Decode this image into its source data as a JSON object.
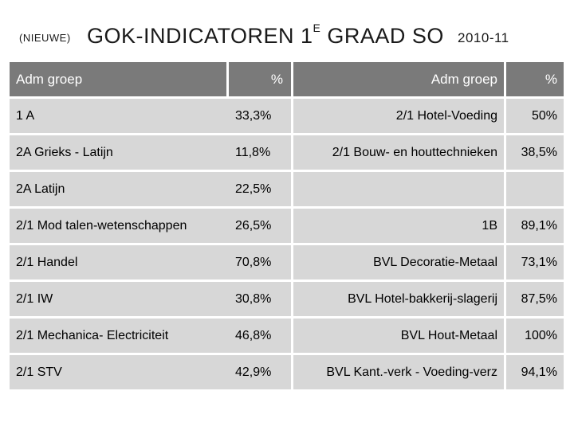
{
  "title": {
    "prefix": "(NIEUWE)",
    "main": "GOK-INDICATOREN 1",
    "superscript": "E",
    "main_suffix": " GRAAD SO",
    "year": "2010-11"
  },
  "table": {
    "headers": [
      "Adm groep",
      "%",
      "Adm groep",
      "%"
    ],
    "rows": [
      [
        "1 A",
        "33,3%",
        "2/1 Hotel-Voeding",
        "50%"
      ],
      [
        "2A Grieks - Latijn",
        "11,8%",
        "2/1 Bouw- en houttechnieken",
        "38,5%"
      ],
      [
        "2A Latijn",
        "22,5%",
        "",
        ""
      ],
      [
        "2/1 Mod talen-wetenschappen",
        "26,5%",
        "1B",
        "89,1%"
      ],
      [
        "2/1 Handel",
        "70,8%",
        "BVL Decoratie-Metaal",
        "73,1%"
      ],
      [
        "2/1 IW",
        "30,8%",
        "BVL Hotel-bakkerij-slagerij",
        "87,5%"
      ],
      [
        "2/1 Mechanica- Electriciteit",
        "46,8%",
        "BVL Hout-Metaal",
        "100%"
      ],
      [
        "2/1 STV",
        "42,9%",
        "BVL Kant.-verk -  Voeding-verz",
        "94,1%"
      ]
    ]
  },
  "colors": {
    "header_bg": "#7a7a7a",
    "row_bg": "#d7d7d7",
    "header_text": "#ffffff"
  }
}
